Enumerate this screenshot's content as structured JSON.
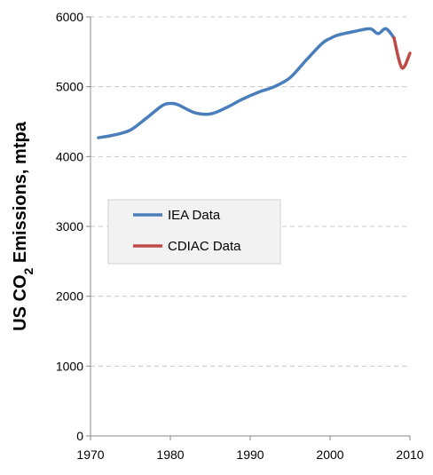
{
  "chart_data": {
    "type": "line",
    "ylabel": "US CO",
    "ylabel_subscript": "2",
    "ylabel_rest": " Emissions,  mtpa",
    "xlabel": "",
    "xlim": [
      1970,
      2010
    ],
    "ylim": [
      0,
      6000
    ],
    "x_ticks": [
      "1970",
      "1980",
      "1990",
      "2000",
      "2010"
    ],
    "y_ticks": [
      "0",
      "1000",
      "2000",
      "3000",
      "4000",
      "5000",
      "6000"
    ],
    "grid": "horizontal dashed",
    "legend_position": "center-left",
    "series": [
      {
        "name": "IEA Data",
        "color": "#4a7ebb",
        "x": [
          1971,
          1973,
          1975,
          1977,
          1979,
          1980,
          1981,
          1983,
          1985,
          1987,
          1989,
          1991,
          1993,
          1995,
          1997,
          1999,
          2000,
          2001,
          2003,
          2005,
          2006,
          2007,
          2008
        ],
        "y": [
          4270,
          4310,
          4380,
          4550,
          4730,
          4760,
          4740,
          4630,
          4610,
          4700,
          4820,
          4920,
          5000,
          5130,
          5380,
          5620,
          5690,
          5740,
          5790,
          5830,
          5760,
          5830,
          5700
        ]
      },
      {
        "name": "CDIAC Data",
        "color": "#be4b48",
        "x": [
          2008,
          2009,
          2010
        ],
        "y": [
          5700,
          5270,
          5480
        ]
      }
    ]
  }
}
